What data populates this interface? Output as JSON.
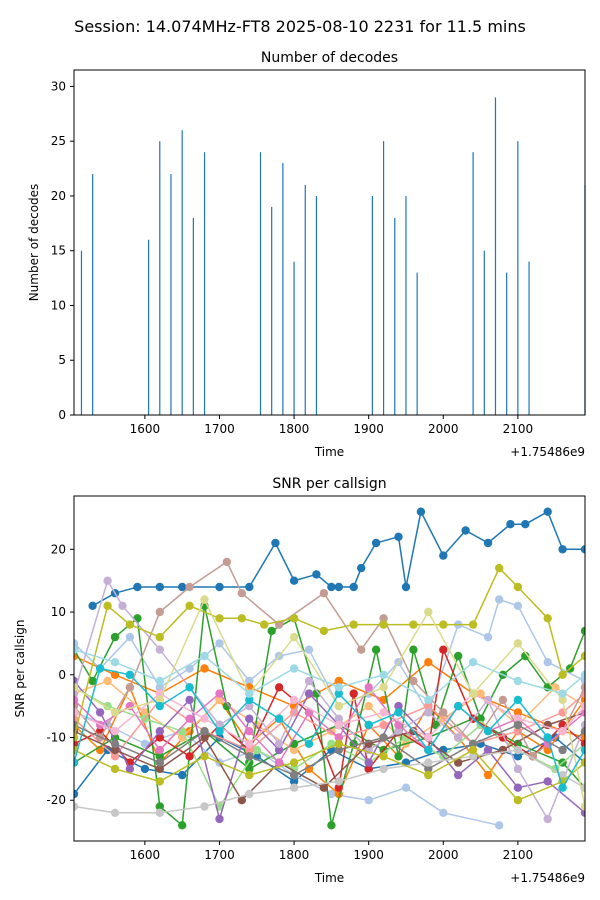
{
  "figure": {
    "suptitle": "Session: 14.074MHz-FT8 2025-08-10 2231 for 11.5 mins"
  },
  "chart_data": [
    {
      "type": "bar",
      "title": "Number of decodes",
      "xlabel": "Time",
      "ylabel": "Number of decodes",
      "offset_text": "+1.75486e9",
      "xlim": [
        1505,
        2190
      ],
      "ylim": [
        0,
        31.5
      ],
      "xticks": [
        1600,
        1700,
        1800,
        1900,
        2000,
        2100
      ],
      "yticks": [
        0,
        5,
        10,
        15,
        20,
        25,
        30
      ],
      "grid": false,
      "bar_color": "#1f77b4",
      "x": [
        1515,
        1530,
        1605,
        1620,
        1635,
        1650,
        1665,
        1680,
        1755,
        1770,
        1785,
        1800,
        1815,
        1830,
        1905,
        1920,
        1935,
        1950,
        1965,
        2040,
        2055,
        2070,
        2085,
        2100,
        2115,
        2190
      ],
      "values": [
        15,
        22,
        16,
        25,
        22,
        26,
        18,
        24,
        24,
        19,
        23,
        14,
        21,
        20,
        20,
        25,
        18,
        20,
        13,
        24,
        15,
        29,
        13,
        25,
        14,
        21
      ]
    },
    {
      "type": "line",
      "title": "SNR per callsign",
      "xlabel": "Time",
      "ylabel": "SNR per callsign",
      "offset_text": "+1.75486e9",
      "xlim": [
        1505,
        2190
      ],
      "ylim": [
        -26.5,
        28.5
      ],
      "xticks": [
        1600,
        1700,
        1800,
        1900,
        2000,
        2100
      ],
      "yticks": [
        -20,
        -10,
        0,
        10,
        20
      ],
      "grid": false,
      "marker": "circle",
      "palette": [
        "#1f77b4",
        "#aec7e8",
        "#ff7f0e",
        "#ffbb78",
        "#2ca02c",
        "#98df8a",
        "#d62728",
        "#ff9896",
        "#9467bd",
        "#c5b0d5",
        "#8c564b",
        "#c49c94",
        "#e377c2",
        "#f7b6d2",
        "#7f7f7f",
        "#c7c7c7",
        "#bcbd22",
        "#dbdb8d",
        "#17becf",
        "#9edae5"
      ],
      "series": [
        {
          "color": "#1f77b4",
          "x": [
            1530,
            1560,
            1590,
            1620,
            1650,
            1700,
            1740,
            1775,
            1800,
            1830,
            1850,
            1860,
            1880,
            1890,
            1910,
            1940,
            1950,
            1970,
            2000,
            2030,
            2060,
            2090,
            2110,
            2140,
            2160,
            2190
          ],
          "y": [
            11,
            13,
            14,
            14,
            14,
            14,
            14,
            21,
            15,
            16,
            14,
            14,
            14,
            17,
            21,
            22,
            14,
            26,
            19,
            23,
            21,
            24,
            24,
            26,
            20,
            20
          ]
        },
        {
          "color": "#1f77b4",
          "x": [
            1505,
            1550,
            1600,
            1650,
            1700,
            1750,
            1800,
            1850,
            1900,
            1950,
            2000,
            2050,
            2100,
            2150,
            2190
          ],
          "y": [
            -19,
            -12,
            -15,
            -16,
            -10,
            -13,
            -17,
            -12,
            -15,
            -14,
            -12,
            -11,
            -13,
            -10,
            -14
          ]
        },
        {
          "color": "#aec7e8",
          "x": [
            1505,
            1540,
            1580,
            1620,
            1660,
            1700,
            1740,
            1780,
            1820,
            1860,
            1900,
            1940,
            1980,
            2020,
            2060,
            2075,
            2100,
            2140,
            2190
          ],
          "y": [
            5,
            1,
            6,
            -2,
            1,
            5,
            -1,
            3,
            4,
            -5,
            -3,
            2,
            -6,
            8,
            6,
            12,
            11,
            2,
            -1
          ]
        },
        {
          "color": "#aec7e8",
          "x": [
            1505,
            1550,
            1600,
            1650,
            1700,
            1750,
            1800,
            1850,
            1900,
            1950,
            2000,
            2075
          ],
          "y": [
            -6,
            -8,
            -11,
            -9,
            -14,
            -12,
            -16,
            -19,
            -20,
            -18,
            -22,
            -24
          ]
        },
        {
          "color": "#ff7f0e",
          "x": [
            1505,
            1540,
            1580,
            1620,
            1660,
            1700,
            1740,
            1780,
            1820,
            1860,
            1900,
            1940,
            1980,
            2020,
            2060,
            2100,
            2140,
            2190
          ],
          "y": [
            -8,
            -12,
            -2,
            -14,
            -9,
            -4,
            -11,
            -7,
            -15,
            -19,
            -8,
            -13,
            -5,
            -10,
            -16,
            -9,
            -12,
            -4
          ]
        },
        {
          "color": "#ff7f0e",
          "x": [
            1505,
            1560,
            1620,
            1680,
            1740,
            1800,
            1860,
            1920,
            1980,
            2040,
            2100,
            2160,
            2190
          ],
          "y": [
            3,
            0,
            -3,
            1,
            -2,
            -5,
            -1,
            -4,
            2,
            -3,
            -6,
            -9,
            -10
          ]
        },
        {
          "color": "#ffbb78",
          "x": [
            1505,
            1550,
            1600,
            1650,
            1700,
            1750,
            1800,
            1850,
            1900,
            1950,
            2000,
            2050,
            2100,
            2150,
            2190
          ],
          "y": [
            -3,
            -1,
            -6,
            -10,
            -4,
            -8,
            -12,
            -9,
            -5,
            -11,
            -7,
            -3,
            -8,
            -2,
            -5
          ]
        },
        {
          "color": "#2ca02c",
          "x": [
            1505,
            1530,
            1560,
            1590,
            1620,
            1650,
            1680,
            1710,
            1740,
            1770,
            1800,
            1830,
            1850,
            1880,
            1910,
            1940,
            1960,
            1990,
            2020,
            2050,
            2080,
            2110,
            2140,
            2170,
            2190
          ],
          "y": [
            4,
            -1,
            6,
            9,
            -21,
            -24,
            11,
            -5,
            -14,
            7,
            9,
            -3,
            -24,
            -11,
            4,
            -13,
            4,
            -8,
            3,
            -7,
            0,
            3,
            -2,
            1,
            7
          ]
        },
        {
          "color": "#2ca02c",
          "x": [
            1505,
            1560,
            1620,
            1680,
            1740,
            1800,
            1860,
            1920,
            1980,
            2040,
            2100,
            2160,
            2190
          ],
          "y": [
            -14,
            -10,
            -13,
            -9,
            -15,
            -11,
            -8,
            -12,
            -10,
            -7,
            -11,
            -14,
            -18
          ]
        },
        {
          "color": "#98df8a",
          "x": [
            1505,
            1550,
            1600,
            1650,
            1700,
            1750,
            1800,
            1850,
            1900,
            1950,
            2000,
            2050,
            2100,
            2150,
            2190
          ],
          "y": [
            -2,
            -5,
            -7,
            -9,
            -21,
            -12,
            -15,
            -11,
            -14,
            -10,
            -13,
            -8,
            -12,
            -15,
            -11
          ]
        },
        {
          "color": "#d62728",
          "x": [
            1505,
            1540,
            1580,
            1620,
            1660,
            1700,
            1740,
            1780,
            1820,
            1860,
            1880,
            1900,
            1940,
            1980,
            2000,
            2040,
            2080,
            2120,
            2160,
            2190
          ],
          "y": [
            -11,
            -9,
            -14,
            -10,
            -13,
            -8,
            -12,
            -2,
            -6,
            -18,
            -3,
            -15,
            -9,
            -12,
            4,
            -7,
            -10,
            -13,
            -8,
            -11
          ]
        },
        {
          "color": "#ff9896",
          "x": [
            1505,
            1560,
            1620,
            1680,
            1740,
            1800,
            1860,
            1920,
            1980,
            2040,
            2100,
            2160,
            2190
          ],
          "y": [
            -7,
            -13,
            -4,
            -9,
            -12,
            -6,
            -10,
            -8,
            -5,
            -11,
            -9,
            -6,
            -3
          ]
        },
        {
          "color": "#9467bd",
          "x": [
            1505,
            1540,
            1580,
            1620,
            1660,
            1700,
            1740,
            1780,
            1820,
            1860,
            1900,
            1940,
            1980,
            2020,
            2060,
            2100,
            2140,
            2190
          ],
          "y": [
            -1,
            -6,
            -15,
            -9,
            -4,
            -23,
            -7,
            -12,
            -3,
            -8,
            -14,
            -5,
            -10,
            -16,
            -12,
            -18,
            -17,
            -22
          ]
        },
        {
          "color": "#c5b0d5",
          "x": [
            1505,
            1550,
            1570,
            1620,
            1660,
            1700,
            1740,
            1780,
            1820,
            1860,
            1900,
            1940,
            1980,
            2020,
            2060,
            2100,
            2140,
            2190
          ],
          "y": [
            -3,
            15,
            11,
            4,
            -2,
            -8,
            -5,
            -11,
            -1,
            -7,
            -12,
            -9,
            -6,
            -10,
            -4,
            -15,
            -23,
            -8
          ]
        },
        {
          "color": "#8c564b",
          "x": [
            1505,
            1560,
            1620,
            1680,
            1730,
            1780,
            1840,
            1900,
            1960,
            2020,
            2080,
            2140,
            2190
          ],
          "y": [
            -9,
            -12,
            -15,
            -10,
            -20,
            -14,
            -18,
            -11,
            -9,
            -14,
            -12,
            -8,
            -6
          ]
        },
        {
          "color": "#c49c94",
          "x": [
            1505,
            1540,
            1580,
            1620,
            1660,
            1710,
            1730,
            1780,
            1840,
            1890,
            1920,
            1960,
            2000,
            2040,
            2080,
            2120,
            2160,
            2190
          ],
          "y": [
            -5,
            -10,
            -2,
            10,
            14,
            18,
            13,
            8,
            13,
            4,
            9,
            -1,
            -6,
            -11,
            -4,
            -13,
            -9,
            -2
          ]
        },
        {
          "color": "#e377c2",
          "x": [
            1505,
            1540,
            1580,
            1620,
            1660,
            1700,
            1740,
            1780,
            1820,
            1860,
            1900,
            1940,
            1980,
            2020,
            2060,
            2100,
            2140,
            2190
          ],
          "y": [
            -4,
            -8,
            -5,
            -12,
            -7,
            -3,
            -9,
            -14,
            -6,
            -10,
            -2,
            -8,
            -12,
            -5,
            -9,
            -7,
            -11,
            -6
          ]
        },
        {
          "color": "#f7b6d2",
          "x": [
            1505,
            1560,
            1620,
            1680,
            1740,
            1800,
            1860,
            1920,
            1980,
            2040,
            2100,
            2160,
            2190
          ],
          "y": [
            -6,
            -9,
            -3,
            -7,
            -11,
            -4,
            -8,
            -6,
            -10,
            -3,
            -7,
            -9,
            -5
          ]
        },
        {
          "color": "#7f7f7f",
          "x": [
            1505,
            1560,
            1620,
            1680,
            1740,
            1800,
            1860,
            1920,
            1980,
            2040,
            2100,
            2160,
            2190
          ],
          "y": [
            -8,
            -11,
            -14,
            -9,
            -13,
            -16,
            -12,
            -10,
            -15,
            -11,
            -8,
            -12,
            -9
          ]
        },
        {
          "color": "#c7c7c7",
          "x": [
            1505,
            1560,
            1620,
            1680,
            1740,
            1800,
            1860,
            1920,
            1980,
            2040,
            2100,
            2160,
            2190
          ],
          "y": [
            -21,
            -22,
            -22,
            -21,
            -19,
            -18,
            -17,
            -15,
            -14,
            -13,
            -12,
            -16,
            -18
          ]
        },
        {
          "color": "#bcbd22",
          "x": [
            1505,
            1550,
            1580,
            1620,
            1660,
            1700,
            1730,
            1760,
            1800,
            1840,
            1880,
            1920,
            1960,
            2000,
            2040,
            2075,
            2100,
            2140,
            2160,
            2190
          ],
          "y": [
            -10,
            11,
            8,
            6,
            11,
            9,
            9,
            8,
            9,
            7,
            8,
            8,
            8,
            8,
            8,
            17,
            14,
            9,
            0,
            3
          ]
        },
        {
          "color": "#bcbd22",
          "x": [
            1505,
            1560,
            1620,
            1680,
            1740,
            1800,
            1860,
            1920,
            1980,
            2040,
            2100,
            2160,
            2190
          ],
          "y": [
            -12,
            -15,
            -17,
            -13,
            -16,
            -14,
            -11,
            -13,
            -16,
            -12,
            -20,
            -17,
            -14
          ]
        },
        {
          "color": "#dbdb8d",
          "x": [
            1505,
            1560,
            1620,
            1680,
            1740,
            1800,
            1860,
            1920,
            1980,
            2040,
            2100,
            2160,
            2190
          ],
          "y": [
            -2,
            -6,
            -4,
            12,
            -3,
            6,
            -5,
            -2,
            10,
            -3,
            5,
            -4,
            -21
          ]
        },
        {
          "color": "#17becf",
          "x": [
            1505,
            1540,
            1580,
            1620,
            1660,
            1700,
            1740,
            1780,
            1820,
            1860,
            1900,
            1940,
            1980,
            2020,
            2060,
            2100,
            2140,
            2160,
            2190
          ],
          "y": [
            -14,
            1,
            0,
            -5,
            -2,
            -9,
            -4,
            -7,
            -11,
            -3,
            -8,
            -6,
            -12,
            -5,
            -9,
            -4,
            -10,
            -18,
            -12
          ]
        },
        {
          "color": "#9edae5",
          "x": [
            1505,
            1560,
            1620,
            1680,
            1740,
            1800,
            1860,
            1920,
            1980,
            2040,
            2100,
            2160,
            2190
          ],
          "y": [
            4,
            2,
            -1,
            3,
            -3,
            1,
            -2,
            0,
            -4,
            2,
            -1,
            -3,
            0
          ]
        }
      ]
    }
  ]
}
